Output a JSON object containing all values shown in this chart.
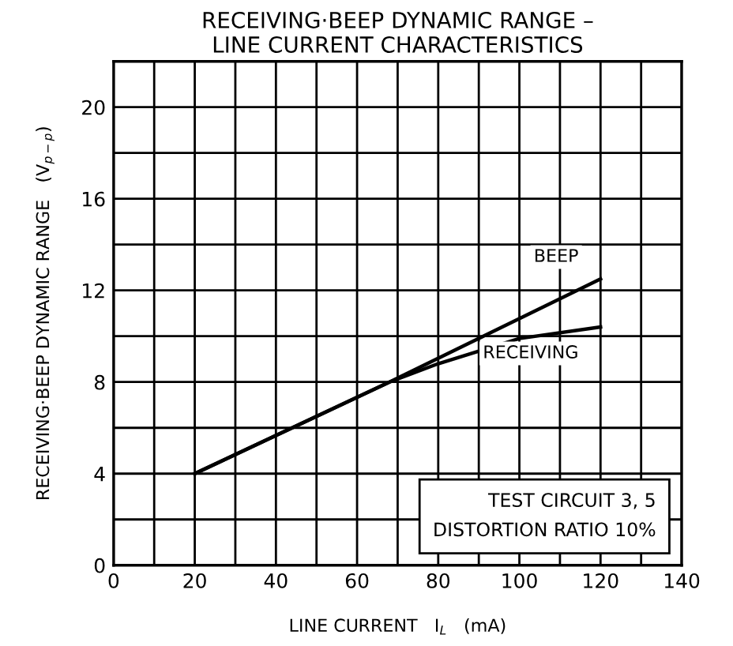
{
  "chart_data": {
    "type": "line",
    "title": "RECEIVING·BEEP DYNAMIC RANGE –\nLINE CURRENT CHARACTERISTICS",
    "xlabel": "LINE CURRENT   I$_{L}$   (mA)",
    "ylabel": "RECEIVING·BEEP DYNAMIC RANGE   (V$_{p−p}$)",
    "series": [
      {
        "name": "BEEP",
        "color": "#000000",
        "x": [
          20,
          68,
          120
        ],
        "values": [
          4,
          8,
          12.5
        ]
      },
      {
        "name": "RECEIVING",
        "color": "#000000",
        "x": [
          20,
          68,
          80,
          100,
          120
        ],
        "values": [
          4,
          8,
          8.8,
          9.9,
          10.4
        ]
      }
    ],
    "xlim": [
      0,
      140
    ],
    "ylim": [
      0,
      22
    ],
    "xticks": [
      0,
      {
        "value": 10,
        "label": null
      },
      20,
      {
        "value": 30,
        "label": null
      },
      40,
      {
        "value": 50,
        "label": null
      },
      60,
      {
        "value": 70,
        "label": null
      },
      80,
      {
        "value": 90,
        "label": null
      },
      100,
      {
        "value": 110,
        "label": null
      },
      120,
      {
        "value": 130,
        "label": null
      },
      140
    ],
    "yticks": [
      0,
      {
        "value": 2,
        "label": null
      },
      4,
      {
        "value": 6,
        "label": null
      },
      8,
      {
        "value": 10,
        "label": null
      },
      12,
      {
        "value": 14,
        "label": null
      },
      16,
      {
        "value": 18,
        "label": null
      },
      20,
      {
        "value": 22,
        "label": null
      }
    ],
    "grid": true,
    "marker": "none",
    "line_style": "solid",
    "legend": false,
    "annotations": [
      "TEST CIRCUIT 3, 5\nDISTORTION RATIO 10%"
    ]
  }
}
